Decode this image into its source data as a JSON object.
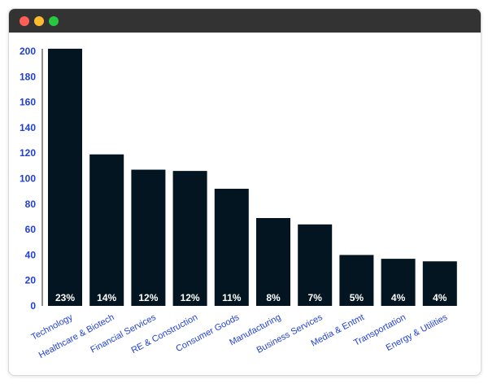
{
  "window": {
    "controls": {
      "close_color": "#ff5f57",
      "minimize_color": "#febc2e",
      "maximize_color": "#28c840"
    },
    "titlebar_color": "#333333"
  },
  "chart_data": {
    "type": "bar",
    "categories": [
      "Technology",
      "Healthcare & Biotech",
      "Financial Services",
      "RE & Construction",
      "Consumer Goods",
      "Manufacturing",
      "Business Services",
      "Media & Entmt",
      "Transportation",
      "Energy & Utilities"
    ],
    "values": [
      202,
      119,
      107,
      106,
      92,
      69,
      64,
      40,
      37,
      35
    ],
    "data_labels": [
      "23%",
      "14%",
      "12%",
      "12%",
      "11%",
      "8%",
      "7%",
      "5%",
      "4%",
      "4%"
    ],
    "title": "",
    "xlabel": "",
    "ylabel": "",
    "ylim": [
      0,
      200
    ],
    "yticks": [
      0,
      20,
      40,
      60,
      80,
      100,
      120,
      140,
      160,
      180,
      200
    ],
    "grid": false,
    "legend": "none",
    "colors": {
      "bar": "#021520",
      "axis_text": "#1f3fd6",
      "bar_label": "#ffffff"
    }
  }
}
